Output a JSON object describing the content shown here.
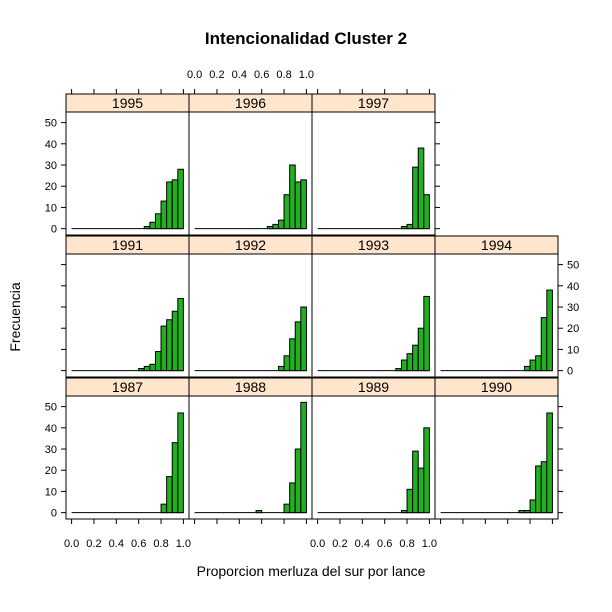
{
  "chart_data": {
    "type": "bar",
    "title": "Intencionalidad Cluster 2",
    "xlabel": "Proporcion merluza del sur por lance",
    "ylabel": "Frecuencia",
    "xlim": [
      -0.05,
      1.05
    ],
    "ylim": [
      -3,
      55
    ],
    "x_ticks": [
      "0.0",
      "0.2",
      "0.4",
      "0.6",
      "0.8",
      "1.0"
    ],
    "y_ticks": [
      "0",
      "10",
      "20",
      "30",
      "40",
      "50"
    ],
    "bin_starts": [
      0.0,
      0.05,
      0.1,
      0.15,
      0.2,
      0.25,
      0.3,
      0.35,
      0.4,
      0.45,
      0.5,
      0.55,
      0.6,
      0.65,
      0.7,
      0.75,
      0.8,
      0.85,
      0.9,
      0.95
    ],
    "bin_width": 0.05,
    "panels": [
      {
        "year": "1995",
        "values": [
          0,
          0,
          0,
          0,
          0,
          0,
          0,
          0,
          0,
          0,
          0,
          0,
          0,
          1,
          3,
          7,
          13,
          22,
          23,
          28
        ]
      },
      {
        "year": "1996",
        "values": [
          0,
          0,
          0,
          0,
          0,
          0,
          0,
          0,
          0,
          0,
          0,
          0,
          0,
          1,
          2,
          4,
          16,
          30,
          22,
          23
        ]
      },
      {
        "year": "1997",
        "values": [
          0,
          0,
          0,
          0,
          0,
          0,
          0,
          0,
          0,
          0,
          0,
          0,
          0,
          0,
          0,
          1,
          2,
          29,
          38,
          16
        ]
      },
      {
        "year": "1991",
        "values": [
          0,
          0,
          0,
          0,
          0,
          0,
          0,
          0,
          0,
          0,
          0,
          0,
          1,
          2,
          3,
          9,
          21,
          24,
          28,
          34
        ]
      },
      {
        "year": "1992",
        "values": [
          0,
          0,
          0,
          0,
          0,
          0,
          0,
          0,
          0,
          0,
          0,
          0,
          0,
          0,
          0,
          2,
          7,
          15,
          23,
          30
        ]
      },
      {
        "year": "1993",
        "values": [
          0,
          0,
          0,
          0,
          0,
          0,
          0,
          0,
          0,
          0,
          0,
          0,
          0,
          0,
          1,
          5,
          8,
          12,
          20,
          35
        ]
      },
      {
        "year": "1994",
        "values": [
          0,
          0,
          0,
          0,
          0,
          0,
          0,
          0,
          0,
          0,
          0,
          0,
          0,
          0,
          0,
          2,
          5,
          7,
          25,
          38
        ]
      },
      {
        "year": "1987",
        "values": [
          0,
          0,
          0,
          0,
          0,
          0,
          0,
          0,
          0,
          0,
          0,
          0,
          0,
          0,
          0,
          0,
          4,
          17,
          33,
          47
        ]
      },
      {
        "year": "1988",
        "values": [
          0,
          0,
          0,
          0,
          0,
          0,
          0,
          0,
          0,
          0,
          0,
          1,
          0,
          0,
          0,
          0,
          4,
          14,
          30,
          52
        ]
      },
      {
        "year": "1989",
        "values": [
          0,
          0,
          0,
          0,
          0,
          0,
          0,
          0,
          0,
          0,
          0,
          0,
          0,
          0,
          0,
          1,
          11,
          29,
          21,
          40
        ]
      },
      {
        "year": "1990",
        "values": [
          0,
          0,
          0,
          0,
          0,
          0,
          0,
          0,
          0,
          0,
          0,
          0,
          0,
          0,
          1,
          1,
          6,
          22,
          24,
          47
        ]
      }
    ]
  }
}
